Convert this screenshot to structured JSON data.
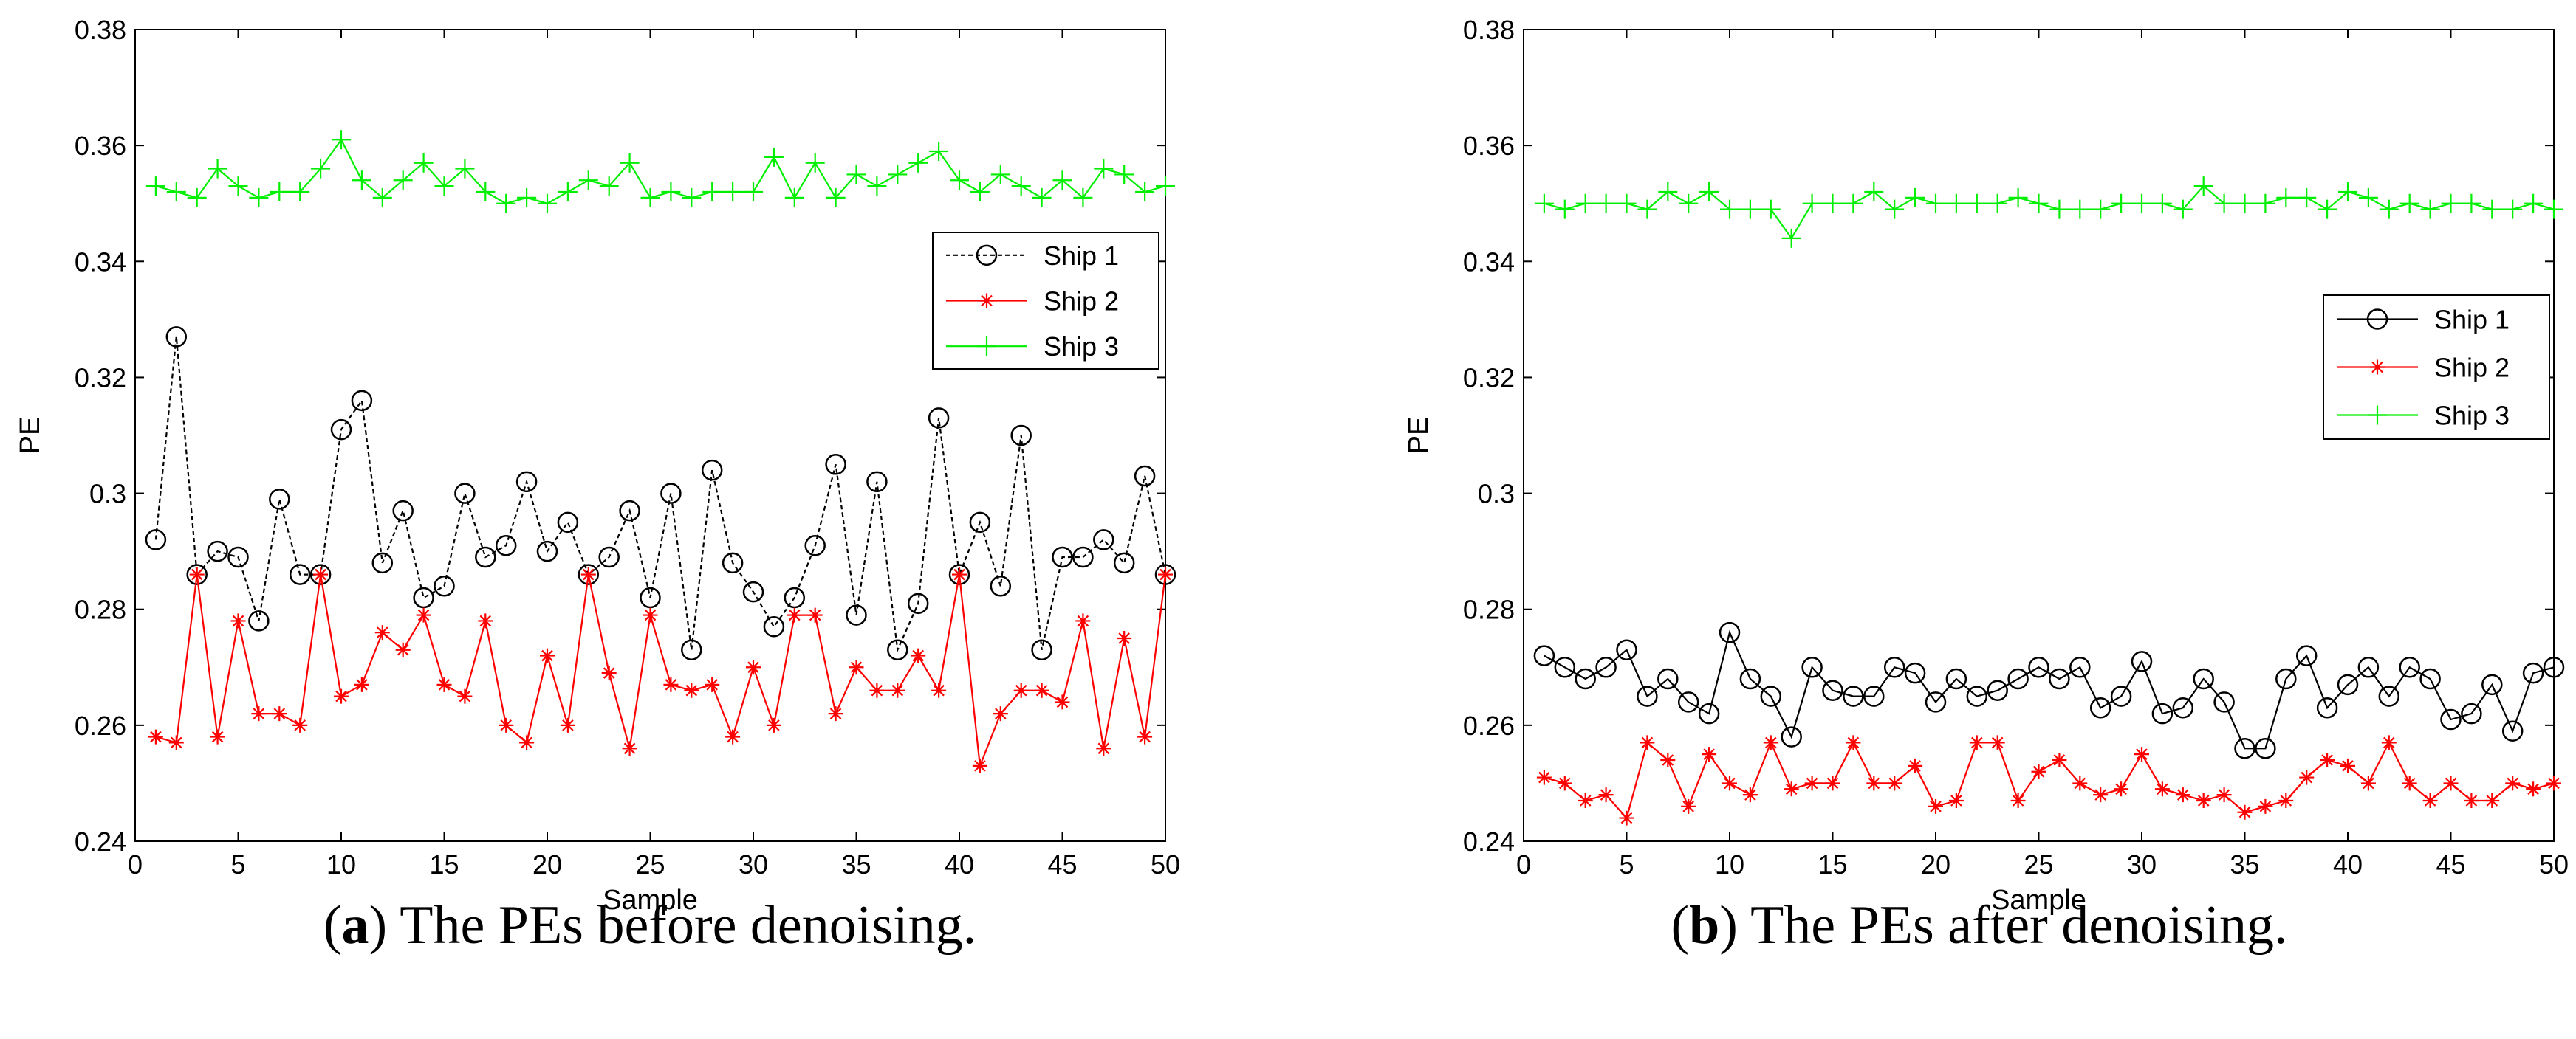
{
  "chart_data": [
    {
      "type": "line",
      "caption": {
        "letter": "a",
        "text": "The PEs before denoising."
      },
      "xlabel": "Sample",
      "ylabel": "PE",
      "xlim": [
        0,
        50
      ],
      "ylim": [
        0.24,
        0.38
      ],
      "xticks": [
        0,
        5,
        10,
        15,
        20,
        25,
        30,
        35,
        40,
        45,
        50
      ],
      "xtick_labels": [
        "0",
        "5",
        "10",
        "15",
        "20",
        "25",
        "30",
        "35",
        "40",
        "45",
        "50"
      ],
      "yticks": [
        0.24,
        0.26,
        0.28,
        0.3,
        0.32,
        0.34,
        0.36,
        0.38
      ],
      "ytick_labels": [
        "0.24",
        "0.26",
        "0.28",
        "0.3",
        "0.32",
        "0.34",
        "0.36",
        "0.38"
      ],
      "legend_position": "right",
      "x": [
        1,
        2,
        3,
        4,
        5,
        6,
        7,
        8,
        9,
        10,
        11,
        12,
        13,
        14,
        15,
        16,
        17,
        18,
        19,
        20,
        21,
        22,
        23,
        24,
        25,
        26,
        27,
        28,
        29,
        30,
        31,
        32,
        33,
        34,
        35,
        36,
        37,
        38,
        39,
        40,
        41,
        42,
        43,
        44,
        45,
        46,
        47,
        48,
        49,
        50
      ],
      "series": [
        {
          "name": "Ship 1",
          "color": "#000000",
          "marker": "circle",
          "dashed": true,
          "values": [
            0.292,
            0.327,
            0.286,
            0.29,
            0.289,
            0.278,
            0.299,
            0.286,
            0.286,
            0.311,
            0.316,
            0.288,
            0.297,
            0.282,
            0.284,
            0.3,
            0.289,
            0.291,
            0.302,
            0.29,
            0.295,
            0.286,
            0.289,
            0.297,
            0.282,
            0.3,
            0.273,
            0.304,
            0.288,
            0.283,
            0.277,
            0.282,
            0.291,
            0.305,
            0.279,
            0.302,
            0.273,
            0.281,
            0.313,
            0.286,
            0.295,
            0.284,
            0.31,
            0.273,
            0.289,
            0.289,
            0.292,
            0.288,
            0.303,
            0.286
          ]
        },
        {
          "name": "Ship 2",
          "color": "#ff0000",
          "marker": "star",
          "dashed": false,
          "values": [
            0.258,
            0.257,
            0.286,
            0.258,
            0.278,
            0.262,
            0.262,
            0.26,
            0.286,
            0.265,
            0.267,
            0.276,
            0.273,
            0.279,
            0.267,
            0.265,
            0.278,
            0.26,
            0.257,
            0.272,
            0.26,
            0.286,
            0.269,
            0.256,
            0.279,
            0.267,
            0.266,
            0.267,
            0.258,
            0.27,
            0.26,
            0.279,
            0.279,
            0.262,
            0.27,
            0.266,
            0.266,
            0.272,
            0.266,
            0.286,
            0.253,
            0.262,
            0.266,
            0.266,
            0.264,
            0.278,
            0.256,
            0.275,
            0.258,
            0.286
          ]
        },
        {
          "name": "Ship 3",
          "color": "#00ee00",
          "marker": "plus",
          "dashed": false,
          "values": [
            0.353,
            0.352,
            0.351,
            0.356,
            0.353,
            0.351,
            0.352,
            0.352,
            0.356,
            0.361,
            0.354,
            0.351,
            0.354,
            0.357,
            0.353,
            0.356,
            0.352,
            0.35,
            0.351,
            0.35,
            0.352,
            0.354,
            0.353,
            0.357,
            0.351,
            0.352,
            0.351,
            0.352,
            0.352,
            0.352,
            0.358,
            0.351,
            0.357,
            0.351,
            0.355,
            0.353,
            0.355,
            0.357,
            0.359,
            0.354,
            0.352,
            0.355,
            0.353,
            0.351,
            0.354,
            0.351,
            0.356,
            0.355,
            0.352,
            0.353
          ]
        }
      ]
    },
    {
      "type": "line",
      "caption": {
        "letter": "b",
        "text": "The PEs after denoising."
      },
      "xlabel": "Sample",
      "ylabel": "PE",
      "xlim": [
        0,
        50
      ],
      "ylim": [
        0.24,
        0.38
      ],
      "xticks": [
        0,
        5,
        10,
        15,
        20,
        25,
        30,
        35,
        40,
        45,
        50
      ],
      "xtick_labels": [
        "0",
        "5",
        "10",
        "15",
        "20",
        "25",
        "30",
        "35",
        "40",
        "45",
        "50"
      ],
      "yticks": [
        0.24,
        0.26,
        0.28,
        0.3,
        0.32,
        0.34,
        0.36,
        0.38
      ],
      "ytick_labels": [
        "0.24",
        "0.26",
        "0.28",
        "0.3",
        "0.32",
        "0.34",
        "0.36",
        "0.38"
      ],
      "legend_position": "right",
      "x": [
        1,
        2,
        3,
        4,
        5,
        6,
        7,
        8,
        9,
        10,
        11,
        12,
        13,
        14,
        15,
        16,
        17,
        18,
        19,
        20,
        21,
        22,
        23,
        24,
        25,
        26,
        27,
        28,
        29,
        30,
        31,
        32,
        33,
        34,
        35,
        36,
        37,
        38,
        39,
        40,
        41,
        42,
        43,
        44,
        45,
        46,
        47,
        48,
        49,
        50
      ],
      "series": [
        {
          "name": "Ship 1",
          "color": "#000000",
          "marker": "circle",
          "dashed": false,
          "values": [
            0.272,
            0.27,
            0.268,
            0.27,
            0.273,
            0.265,
            0.268,
            0.264,
            0.262,
            0.276,
            0.268,
            0.265,
            0.258,
            0.27,
            0.266,
            0.265,
            0.265,
            0.27,
            0.269,
            0.264,
            0.268,
            0.265,
            0.266,
            0.268,
            0.27,
            0.268,
            0.27,
            0.263,
            0.265,
            0.271,
            0.262,
            0.263,
            0.268,
            0.264,
            0.256,
            0.256,
            0.268,
            0.272,
            0.263,
            0.267,
            0.27,
            0.265,
            0.27,
            0.268,
            0.261,
            0.262,
            0.267,
            0.259,
            0.269,
            0.27
          ]
        },
        {
          "name": "Ship 2",
          "color": "#ff0000",
          "marker": "star",
          "dashed": false,
          "values": [
            0.251,
            0.25,
            0.247,
            0.248,
            0.244,
            0.257,
            0.254,
            0.246,
            0.255,
            0.25,
            0.248,
            0.257,
            0.249,
            0.25,
            0.25,
            0.257,
            0.25,
            0.25,
            0.253,
            0.246,
            0.247,
            0.257,
            0.257,
            0.247,
            0.252,
            0.254,
            0.25,
            0.248,
            0.249,
            0.255,
            0.249,
            0.248,
            0.247,
            0.248,
            0.245,
            0.246,
            0.247,
            0.251,
            0.254,
            0.253,
            0.25,
            0.257,
            0.25,
            0.247,
            0.25,
            0.247,
            0.247,
            0.25,
            0.249,
            0.25
          ]
        },
        {
          "name": "Ship 3",
          "color": "#00ee00",
          "marker": "plus",
          "dashed": false,
          "values": [
            0.35,
            0.349,
            0.35,
            0.35,
            0.35,
            0.349,
            0.352,
            0.35,
            0.352,
            0.349,
            0.349,
            0.349,
            0.344,
            0.35,
            0.35,
            0.35,
            0.352,
            0.349,
            0.351,
            0.35,
            0.35,
            0.35,
            0.35,
            0.351,
            0.35,
            0.349,
            0.349,
            0.349,
            0.35,
            0.35,
            0.35,
            0.349,
            0.353,
            0.35,
            0.35,
            0.35,
            0.351,
            0.351,
            0.349,
            0.352,
            0.351,
            0.349,
            0.35,
            0.349,
            0.35,
            0.35,
            0.349,
            0.349,
            0.35,
            0.349
          ]
        }
      ]
    }
  ]
}
